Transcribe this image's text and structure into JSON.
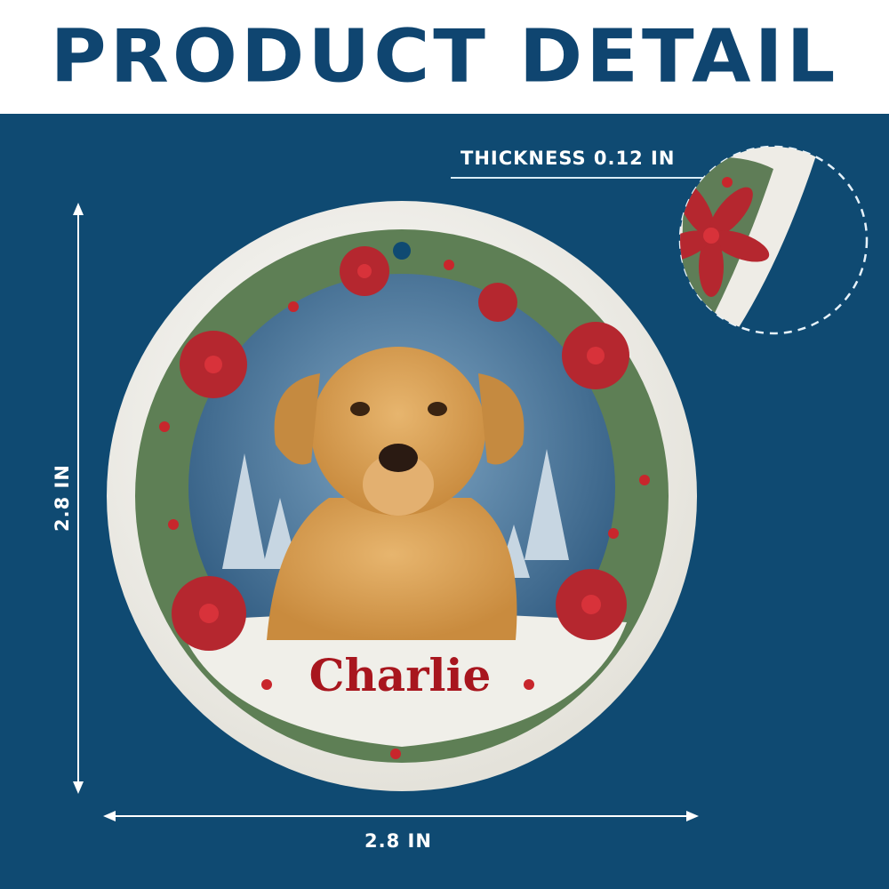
{
  "header": {
    "title": "PRODUCT DETAIL"
  },
  "dimensions": {
    "thickness_label": "THICKNESS 0.12 IN",
    "height_label": "2.8 IN",
    "width_label": "2.8 IN"
  },
  "ornament": {
    "name_text": "Charlie"
  },
  "colors": {
    "panel": "#0f4a72",
    "title": "#0f4570",
    "name_text": "#a8161e"
  }
}
